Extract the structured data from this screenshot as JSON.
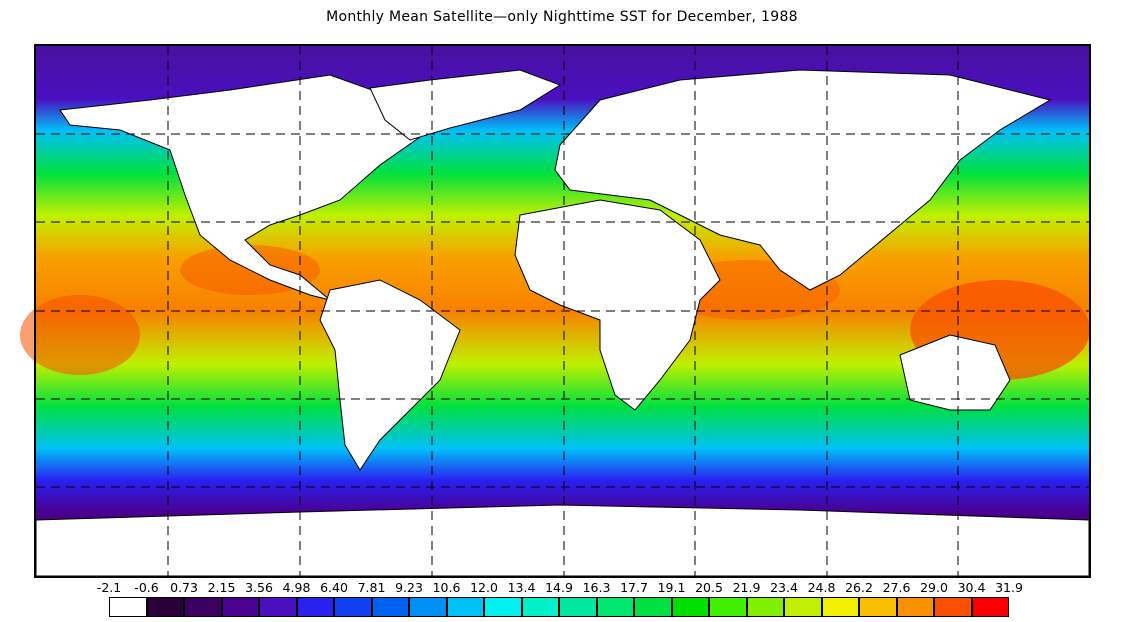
{
  "map": {
    "title": "Monthly Mean Satellite—only Nighttime SST for December, 1988",
    "variable": "sea surface temperature",
    "projection": "equirectangular",
    "gridlines": "dashed",
    "land_color": "#ffffff",
    "colorbar": {
      "boundaries": [
        "-2.1",
        "-0.6",
        "0.73",
        "2.15",
        "3.56",
        "4.98",
        "6.40",
        "7.81",
        "9.23",
        "10.6",
        "12.0",
        "13.4",
        "14.9",
        "16.3",
        "17.7",
        "19.1",
        "20.5",
        "21.9",
        "23.4",
        "24.8",
        "26.2",
        "27.6",
        "29.0",
        "30.4",
        "31.9"
      ],
      "colors": [
        "#ffffff",
        "#2a0038",
        "#3c0060",
        "#4a0090",
        "#4a10c0",
        "#2a20f0",
        "#1040f0",
        "#0060f0",
        "#0090f8",
        "#00c0f8",
        "#00f0f0",
        "#00f0c8",
        "#00e8a0",
        "#00e870",
        "#00e040",
        "#00e000",
        "#40f000",
        "#80f000",
        "#c0f000",
        "#f0f000",
        "#f8c000",
        "#f89000",
        "#f85000",
        "#f80000"
      ]
    }
  }
}
